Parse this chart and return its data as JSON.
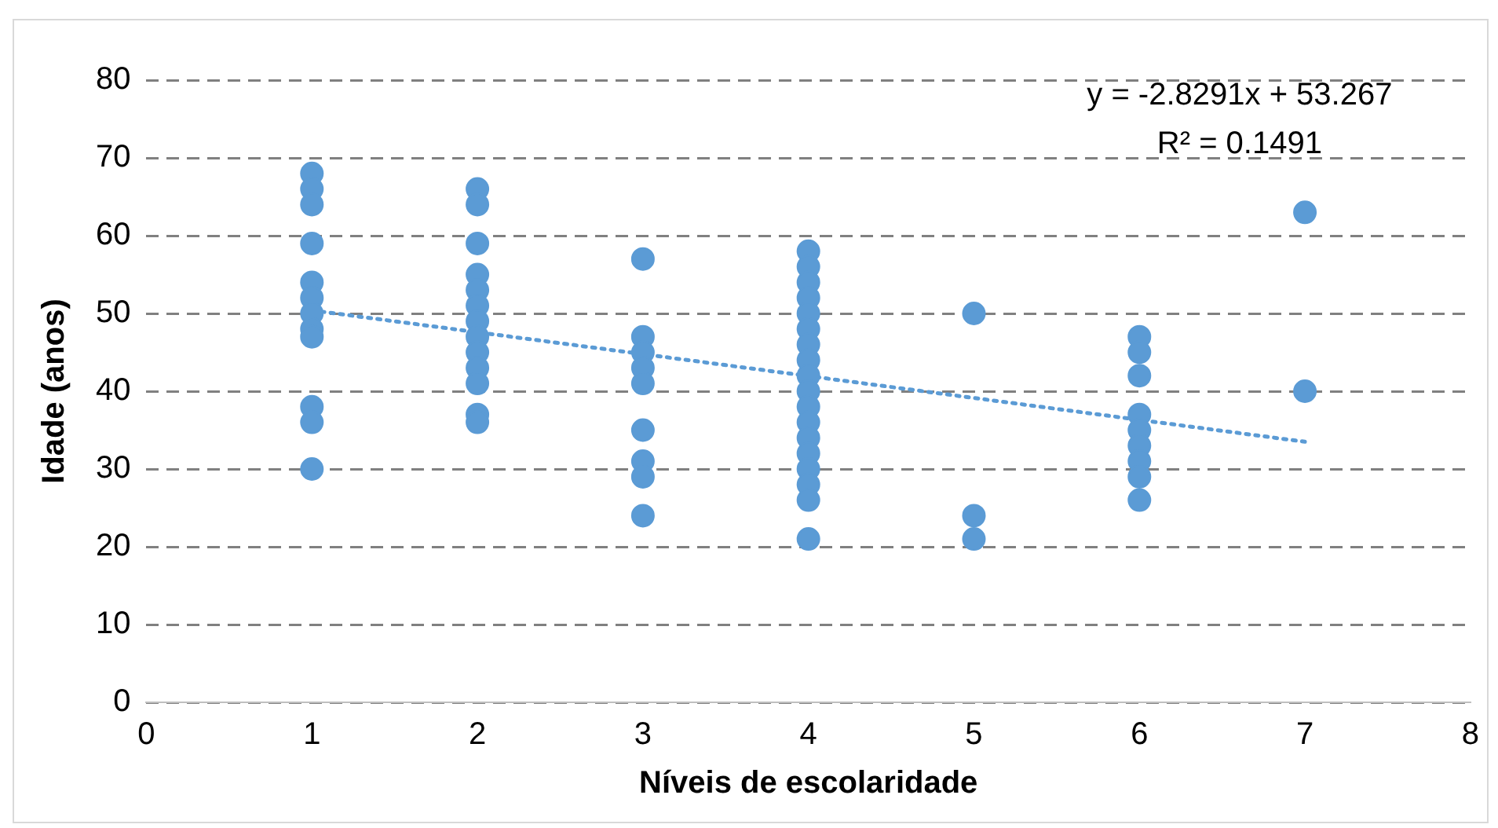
{
  "chart_data": {
    "type": "scatter",
    "xlabel": "Níveis de escolaridade",
    "ylabel": "Idade (anos)",
    "xlim": [
      0,
      8
    ],
    "xticks": [
      0,
      1,
      2,
      3,
      4,
      5,
      6,
      7,
      8
    ],
    "ylim": [
      0,
      80
    ],
    "yticks": [
      0,
      10,
      20,
      30,
      40,
      50,
      60,
      70,
      80
    ],
    "grid": "y",
    "legend": false,
    "marker": "circle",
    "annotations": [
      "y = -2.8291x + 53.267",
      "R² = 0.1491"
    ],
    "series": [
      {
        "type": "scatter",
        "color": "#5b9bd5",
        "x": [
          1,
          1,
          1,
          1,
          1,
          1,
          1,
          1,
          1,
          1,
          1,
          1,
          2,
          2,
          2,
          2,
          2,
          2,
          2,
          2,
          2,
          2,
          2,
          2,
          2,
          3,
          3,
          3,
          3,
          3,
          3,
          3,
          3,
          3,
          4,
          4,
          4,
          4,
          4,
          4,
          4,
          4,
          4,
          4,
          4,
          4,
          4,
          4,
          4,
          4,
          4,
          4,
          5,
          5,
          5,
          6,
          6,
          6,
          6,
          6,
          6,
          6,
          6,
          6,
          7,
          7
        ],
        "values": [
          68,
          66,
          64,
          59,
          54,
          52,
          50,
          48,
          38,
          36,
          30,
          47,
          66,
          64,
          59,
          55,
          53,
          51,
          49,
          47,
          45,
          43,
          41,
          37,
          36,
          57,
          47,
          45,
          43,
          41,
          35,
          31,
          29,
          24,
          58,
          56,
          54,
          52,
          50,
          48,
          46,
          44,
          42,
          40,
          38,
          36,
          34,
          32,
          30,
          28,
          26,
          21,
          50,
          24,
          21,
          47,
          45,
          42,
          37,
          35,
          33,
          31,
          29,
          26,
          63,
          40
        ]
      },
      {
        "type": "line",
        "color": "#5b9bd5",
        "line_style": "dotted",
        "marker": "none",
        "x": [
          1,
          7
        ],
        "values": [
          50.4,
          33.5
        ]
      }
    ]
  }
}
